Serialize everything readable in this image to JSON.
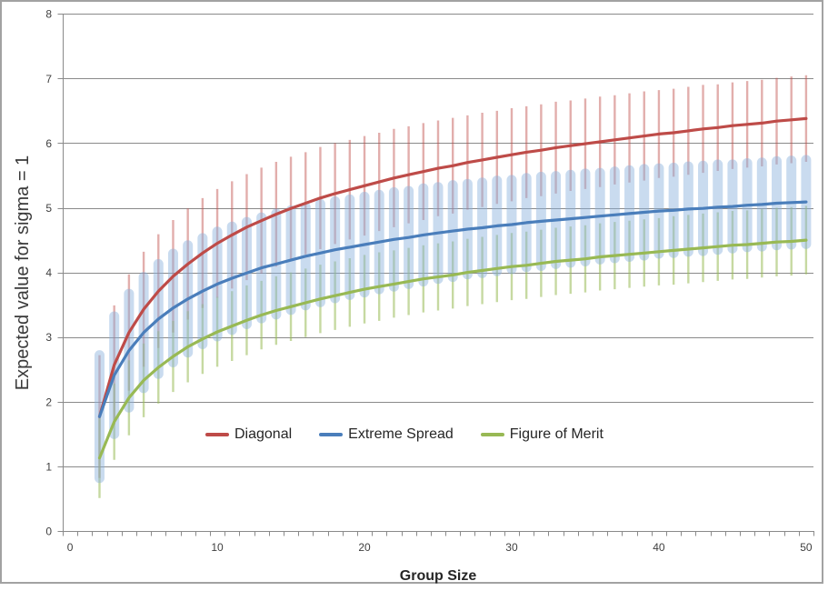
{
  "window": {
    "background": "#ffffff",
    "frame_border_color": "#a2a2a2"
  },
  "chart_data": {
    "type": "line",
    "title": "",
    "xlabel": "Group Size",
    "ylabel": "Expected value for sigma = 1",
    "xlim": [
      0,
      50
    ],
    "ylim": [
      0,
      8
    ],
    "x_ticks": [
      0,
      10,
      20,
      30,
      40,
      50
    ],
    "y_ticks": [
      0,
      1,
      2,
      3,
      4,
      5,
      6,
      7,
      8
    ],
    "grid": "horizontal-major-on",
    "grid_color": "#8a8a8a",
    "axis_color": "#8a8a8a",
    "tick_label_color": "#3f3f3f",
    "legend_position": "inside-bottom-center",
    "error_bars": "plus-minus-one-sd",
    "x": [
      2,
      3,
      4,
      5,
      6,
      7,
      8,
      9,
      10,
      11,
      12,
      13,
      14,
      15,
      16,
      17,
      18,
      19,
      20,
      21,
      22,
      23,
      24,
      25,
      26,
      27,
      28,
      29,
      30,
      31,
      32,
      33,
      34,
      35,
      36,
      37,
      38,
      39,
      40,
      41,
      42,
      43,
      44,
      45,
      46,
      47,
      48,
      49,
      50
    ],
    "series": [
      {
        "name": "Diagonal",
        "color": "#be4b48",
        "error_bar_style": "thin-line",
        "error_bar_color": "rgba(190,75,72,0.45)",
        "values": [
          1.77,
          2.57,
          3.07,
          3.43,
          3.71,
          3.94,
          4.13,
          4.3,
          4.45,
          4.58,
          4.7,
          4.8,
          4.9,
          4.99,
          5.07,
          5.15,
          5.22,
          5.28,
          5.34,
          5.4,
          5.46,
          5.51,
          5.56,
          5.61,
          5.65,
          5.7,
          5.74,
          5.78,
          5.82,
          5.86,
          5.89,
          5.93,
          5.96,
          5.99,
          6.02,
          6.05,
          6.08,
          6.11,
          6.14,
          6.16,
          6.19,
          6.22,
          6.24,
          6.27,
          6.29,
          6.31,
          6.34,
          6.36,
          6.38
        ],
        "sd": [
          0.95,
          0.92,
          0.9,
          0.89,
          0.88,
          0.87,
          0.86,
          0.85,
          0.84,
          0.83,
          0.82,
          0.82,
          0.81,
          0.8,
          0.79,
          0.79,
          0.78,
          0.77,
          0.77,
          0.76,
          0.76,
          0.75,
          0.75,
          0.74,
          0.74,
          0.73,
          0.73,
          0.72,
          0.72,
          0.71,
          0.71,
          0.71,
          0.7,
          0.7,
          0.7,
          0.69,
          0.69,
          0.69,
          0.68,
          0.68,
          0.68,
          0.68,
          0.67,
          0.67,
          0.67,
          0.67,
          0.67,
          0.67,
          0.67
        ]
      },
      {
        "name": "Extreme Spread",
        "color": "#4a7ebb",
        "error_bar_style": "thick-capsule",
        "error_bar_color": "rgba(137,177,221,0.46)",
        "values": [
          1.77,
          2.41,
          2.79,
          3.07,
          3.28,
          3.45,
          3.59,
          3.71,
          3.82,
          3.91,
          3.99,
          4.07,
          4.13,
          4.19,
          4.25,
          4.3,
          4.35,
          4.39,
          4.43,
          4.47,
          4.51,
          4.54,
          4.58,
          4.61,
          4.64,
          4.67,
          4.69,
          4.72,
          4.74,
          4.77,
          4.79,
          4.81,
          4.83,
          4.85,
          4.87,
          4.89,
          4.91,
          4.93,
          4.95,
          4.96,
          4.98,
          4.99,
          5.01,
          5.02,
          5.04,
          5.05,
          5.07,
          5.08,
          5.09
        ],
        "sd": [
          0.95,
          0.91,
          0.88,
          0.86,
          0.85,
          0.84,
          0.83,
          0.82,
          0.81,
          0.8,
          0.79,
          0.78,
          0.78,
          0.77,
          0.76,
          0.76,
          0.75,
          0.74,
          0.74,
          0.73,
          0.73,
          0.72,
          0.72,
          0.71,
          0.71,
          0.7,
          0.7,
          0.7,
          0.69,
          0.69,
          0.69,
          0.68,
          0.68,
          0.68,
          0.67,
          0.67,
          0.67,
          0.67,
          0.66,
          0.66,
          0.66,
          0.66,
          0.66,
          0.65,
          0.65,
          0.65,
          0.65,
          0.65,
          0.65
        ]
      },
      {
        "name": "Figure of Merit",
        "color": "#98b954",
        "error_bar_style": "thin-line",
        "error_bar_color": "rgba(152,185,84,0.55)",
        "values": [
          1.13,
          1.69,
          2.06,
          2.33,
          2.53,
          2.7,
          2.85,
          2.97,
          3.08,
          3.17,
          3.26,
          3.34,
          3.41,
          3.47,
          3.53,
          3.59,
          3.64,
          3.69,
          3.74,
          3.78,
          3.82,
          3.86,
          3.9,
          3.93,
          3.96,
          4.0,
          4.03,
          4.06,
          4.09,
          4.11,
          4.14,
          4.17,
          4.19,
          4.21,
          4.24,
          4.26,
          4.28,
          4.3,
          4.32,
          4.34,
          4.36,
          4.38,
          4.4,
          4.42,
          4.43,
          4.45,
          4.47,
          4.48,
          4.5
        ],
        "sd": [
          0.62,
          0.59,
          0.58,
          0.57,
          0.56,
          0.55,
          0.55,
          0.54,
          0.54,
          0.54,
          0.54,
          0.53,
          0.53,
          0.53,
          0.53,
          0.53,
          0.53,
          0.53,
          0.53,
          0.53,
          0.52,
          0.52,
          0.52,
          0.52,
          0.52,
          0.52,
          0.52,
          0.52,
          0.52,
          0.52,
          0.52,
          0.52,
          0.52,
          0.52,
          0.52,
          0.52,
          0.52,
          0.52,
          0.52,
          0.53,
          0.53,
          0.53,
          0.53,
          0.53,
          0.53,
          0.53,
          0.53,
          0.53,
          0.53
        ]
      }
    ]
  }
}
